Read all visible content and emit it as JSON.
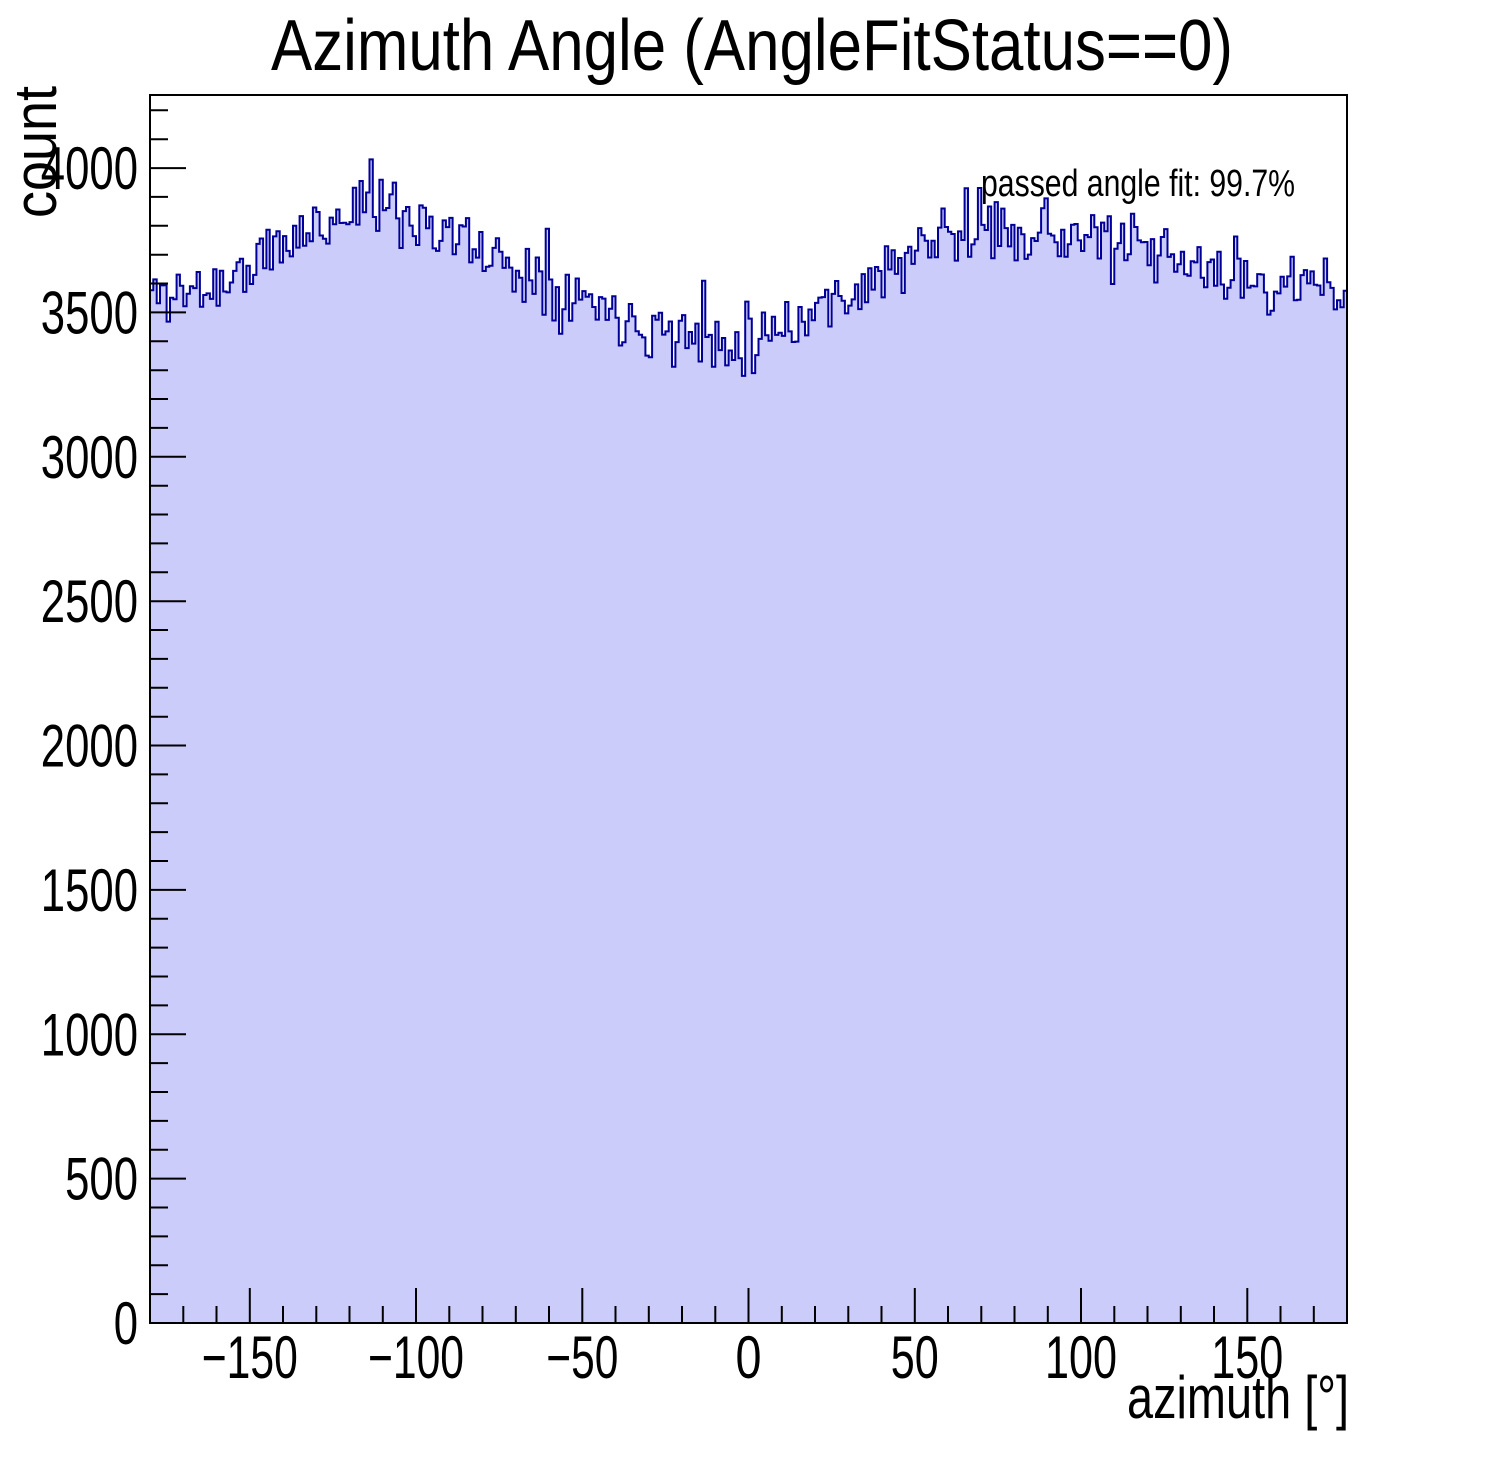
{
  "page": {
    "background": "#ffffff"
  },
  "chart_data": {
    "type": "bar",
    "style": "step-histogram-filled",
    "title": "Azimuth Angle (AngleFitStatus==0)",
    "xlabel": "azimuth [°]",
    "ylabel": "count",
    "annotation": "passed angle fit: 99.7%",
    "grid": false,
    "legend_position": "none",
    "xlim": [
      -180,
      180
    ],
    "ylim": [
      0,
      4253
    ],
    "x_major_ticks": [
      -150,
      -100,
      -50,
      0,
      50,
      100,
      150
    ],
    "x_major_tick_labels": [
      "−150",
      "−100",
      "−50",
      "0",
      "50",
      "100",
      "150"
    ],
    "x_minor_tick_step": 10,
    "y_major_ticks": [
      0,
      500,
      1000,
      1500,
      2000,
      2500,
      3000,
      3500,
      4000
    ],
    "y_major_tick_labels": [
      "0",
      "500",
      "1000",
      "1500",
      "2000",
      "2500",
      "3000",
      "3500",
      "4000"
    ],
    "y_minor_tick_step": 100,
    "n_bins": 360,
    "bin_width_deg": 1,
    "noise_sigma_counts": 55,
    "envelope": {
      "x": [
        -180,
        -175,
        -170,
        -165,
        -160,
        -155,
        -150,
        -145,
        -140,
        -135,
        -130,
        -125,
        -120,
        -115,
        -110,
        -105,
        -100,
        -95,
        -90,
        -85,
        -80,
        -75,
        -70,
        -65,
        -60,
        -55,
        -50,
        -45,
        -40,
        -35,
        -30,
        -25,
        -20,
        -15,
        -10,
        -5,
        0,
        5,
        10,
        15,
        20,
        25,
        30,
        35,
        40,
        45,
        50,
        55,
        60,
        65,
        70,
        75,
        80,
        85,
        90,
        95,
        100,
        105,
        110,
        115,
        120,
        125,
        130,
        135,
        140,
        145,
        150,
        155,
        160,
        165,
        170,
        175,
        180
      ],
      "mean_counts": [
        3560,
        3565,
        3570,
        3580,
        3590,
        3620,
        3655,
        3695,
        3730,
        3762,
        3795,
        3825,
        3850,
        3868,
        3860,
        3848,
        3830,
        3805,
        3775,
        3740,
        3705,
        3685,
        3660,
        3630,
        3600,
        3575,
        3553,
        3530,
        3505,
        3482,
        3460,
        3440,
        3425,
        3412,
        3405,
        3410,
        3420,
        3438,
        3458,
        3480,
        3508,
        3538,
        3570,
        3600,
        3632,
        3662,
        3695,
        3725,
        3755,
        3775,
        3788,
        3795,
        3792,
        3788,
        3780,
        3770,
        3760,
        3748,
        3735,
        3718,
        3700,
        3682,
        3665,
        3652,
        3640,
        3630,
        3620,
        3610,
        3600,
        3590,
        3580,
        3570,
        3565
      ]
    },
    "notable_bins": [
      {
        "x": -113.5,
        "y": 4030
      },
      {
        "x": -116.5,
        "y": 3955
      },
      {
        "x": -60.5,
        "y": 3790
      },
      {
        "x": -14.5,
        "y": 3330
      },
      {
        "x": -13.5,
        "y": 3610
      },
      {
        "x": 1.5,
        "y": 3290
      },
      {
        "x": 58.5,
        "y": 3860
      },
      {
        "x": 65.5,
        "y": 3930
      },
      {
        "x": 179.5,
        "y": 3575
      }
    ],
    "colors": {
      "fill": "#ccccfa",
      "line": "#000099",
      "frame": "#000000",
      "text": "#000000",
      "background": "#ffffff"
    }
  }
}
